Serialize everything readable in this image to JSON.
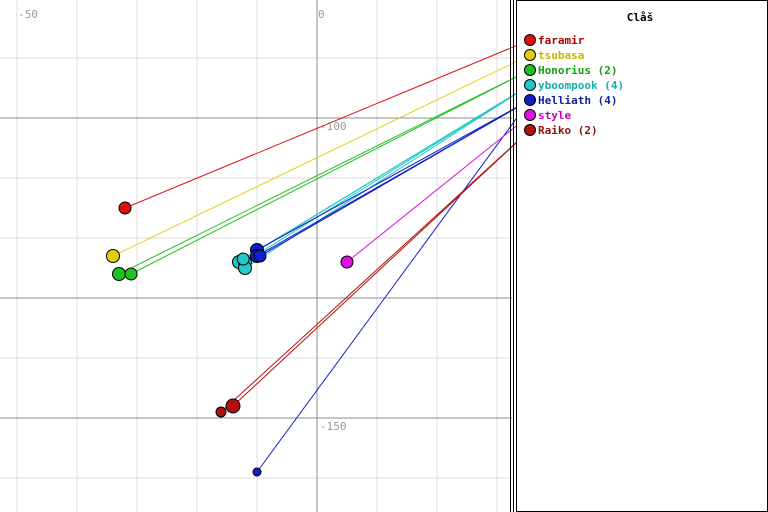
{
  "legend": {
    "title": "Clåš",
    "items": [
      {
        "label": "faramir",
        "color": "#e01010",
        "text_color": "#b00000"
      },
      {
        "label": "tsubasa",
        "color": "#e0d010",
        "text_color": "#c8b400"
      },
      {
        "label": "Honorius (2)",
        "color": "#20c020",
        "text_color": "#10a010"
      },
      {
        "label": "yboompook (4)",
        "color": "#20c8c8",
        "text_color": "#10b0b0"
      },
      {
        "label": "Helliath (4)",
        "color": "#1020c8",
        "text_color": "#1020a0"
      },
      {
        "label": "style",
        "color": "#e010e0",
        "text_color": "#c000c0"
      },
      {
        "label": "Raiko (2)",
        "color": "#b01010",
        "text_color": "#901010"
      }
    ]
  },
  "axes": {
    "x_labels": [
      "-50",
      "0"
    ],
    "y_labels": [
      "-100",
      "-150"
    ]
  },
  "markers": [
    {
      "legend_index": 0,
      "x": -32,
      "y": -115,
      "r": 6
    },
    {
      "legend_index": 1,
      "x": -34,
      "y": -123,
      "r": 6.5
    },
    {
      "legend_index": 2,
      "x": -33,
      "y": -126,
      "r": 6.5
    },
    {
      "legend_index": 2,
      "x": -31,
      "y": -126,
      "r": 6
    },
    {
      "legend_index": 3,
      "x": -13,
      "y": -124,
      "r": 6.5
    },
    {
      "legend_index": 3,
      "x": -12,
      "y": -124,
      "r": 6.5
    },
    {
      "legend_index": 3,
      "x": -12,
      "y": -125,
      "r": 6.5
    },
    {
      "legend_index": 3,
      "x": -12.3,
      "y": -123.5,
      "r": 6
    },
    {
      "legend_index": 4,
      "x": -10,
      "y": -122,
      "r": 6.5
    },
    {
      "legend_index": 4,
      "x": -10,
      "y": -123,
      "r": 6.5
    },
    {
      "legend_index": 4,
      "x": -9.5,
      "y": -123,
      "r": 6
    },
    {
      "legend_index": 4,
      "x": -10,
      "y": -159,
      "r": 4
    },
    {
      "legend_index": 5,
      "x": 5,
      "y": -124,
      "r": 6
    },
    {
      "legend_index": 6,
      "x": -14,
      "y": -148,
      "r": 7
    },
    {
      "legend_index": 6,
      "x": -16,
      "y": -149,
      "r": 5
    }
  ]
}
